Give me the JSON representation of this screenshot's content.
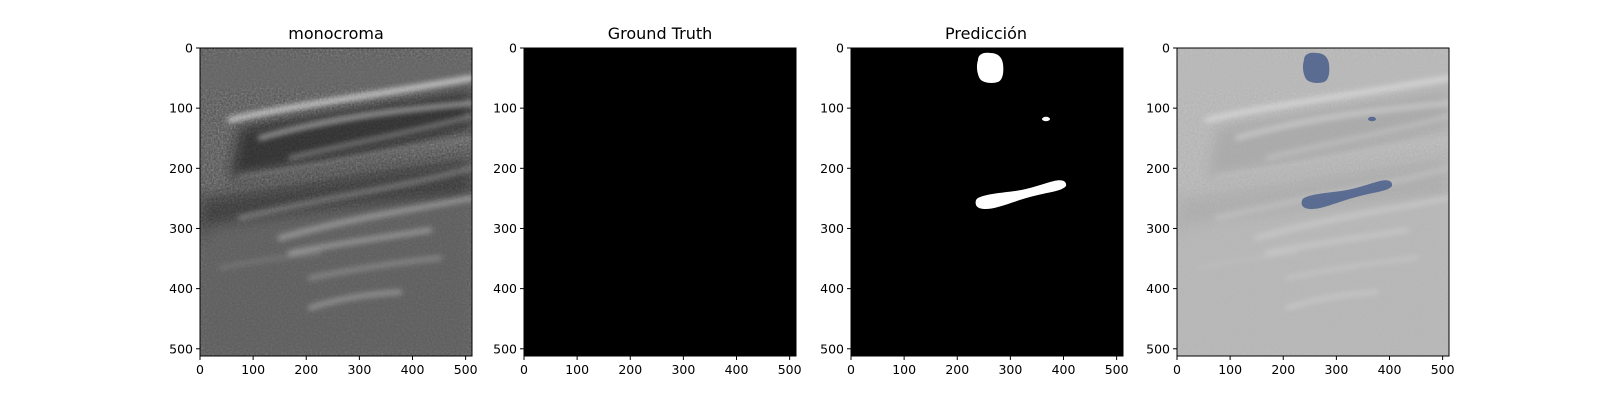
{
  "figure": {
    "panels": [
      {
        "title": "monocroma",
        "kind": "ultrasound"
      },
      {
        "title": "Ground Truth",
        "kind": "empty-mask"
      },
      {
        "title": "Predicción",
        "kind": "prediction-mask"
      },
      {
        "title": "",
        "kind": "overlay"
      }
    ],
    "x_ticks": [
      "0",
      "100",
      "200",
      "300",
      "400",
      "500"
    ],
    "y_ticks": [
      "0",
      "100",
      "200",
      "300",
      "400",
      "500"
    ],
    "image_size": 512,
    "colors": {
      "mask_background": "#000000",
      "mask_foreground": "#ffffff",
      "overlay_tint": "#4a5f8c"
    }
  }
}
